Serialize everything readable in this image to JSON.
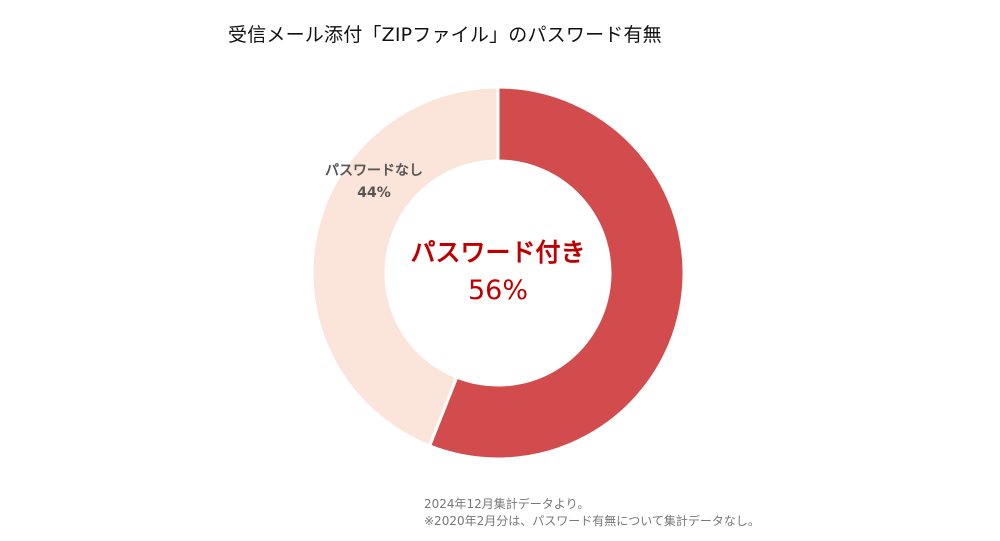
{
  "title": "受信メール添付「ZIPファイル」のパスワード有無",
  "chart_data": {
    "type": "pie",
    "title": "受信メール添付「ZIPファイル」のパスワード有無",
    "slices": [
      {
        "label": "パスワード付き",
        "value_label": "56%",
        "value": 56,
        "color": "#d24b4d"
      },
      {
        "label": "パスワードなし",
        "value_label": "44%",
        "value": 44,
        "color": "#fbe4da"
      }
    ]
  },
  "notes": [
    "2024年12月集計データより。",
    "※2020年2月分は、パスワード有無について集計データなし。"
  ]
}
